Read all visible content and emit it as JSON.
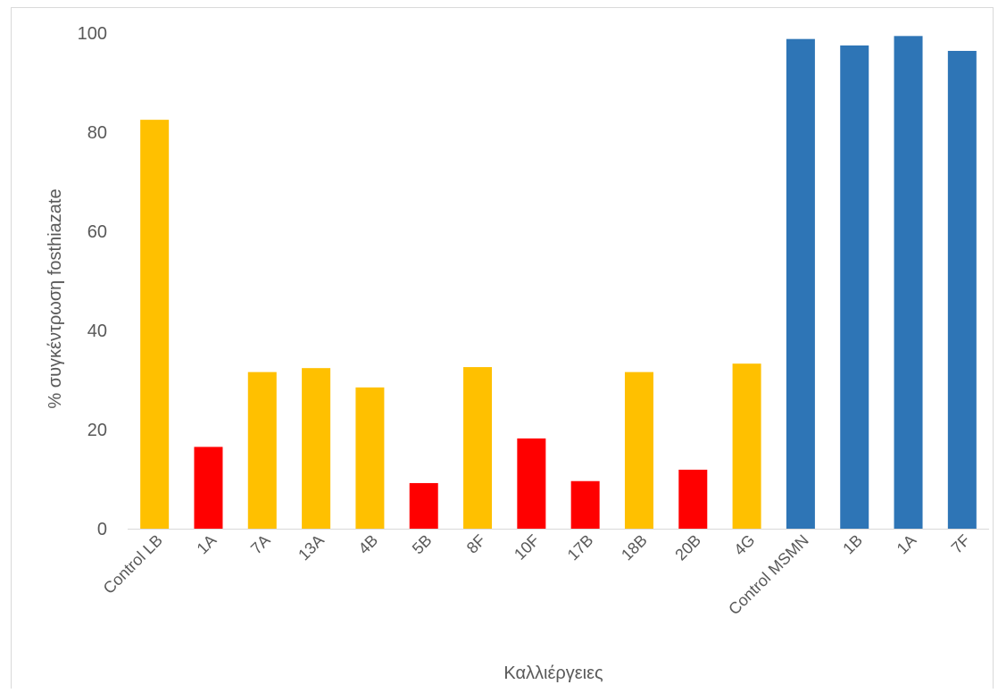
{
  "chart_data": {
    "type": "bar",
    "title": "",
    "xlabel": "Καλλιέργειες",
    "ylabel": "% συγκέντρωση fosthiazate",
    "ylim": [
      0,
      100
    ],
    "yticks": [
      0,
      20,
      40,
      60,
      80,
      100
    ],
    "grid": false,
    "categories": [
      "Control LB",
      "1A",
      "7A",
      "13A",
      "4B",
      "5B",
      "8F",
      "10F",
      "17B",
      "18B",
      "20B",
      "4G",
      "Control MSMN",
      "1B",
      "1A",
      "7F"
    ],
    "values": [
      82.5,
      16.5,
      31.6,
      32.4,
      28.5,
      9.2,
      32.6,
      18.2,
      9.6,
      31.6,
      11.9,
      33.3,
      98.8,
      97.5,
      99.4,
      96.4
    ],
    "colors": [
      "#FFC000",
      "#FF0000",
      "#FFC000",
      "#FFC000",
      "#FFC000",
      "#FF0000",
      "#FFC000",
      "#FF0000",
      "#FF0000",
      "#FFC000",
      "#FF0000",
      "#FFC000",
      "#2E75B6",
      "#2E75B6",
      "#2E75B6",
      "#2E75B6"
    ]
  }
}
